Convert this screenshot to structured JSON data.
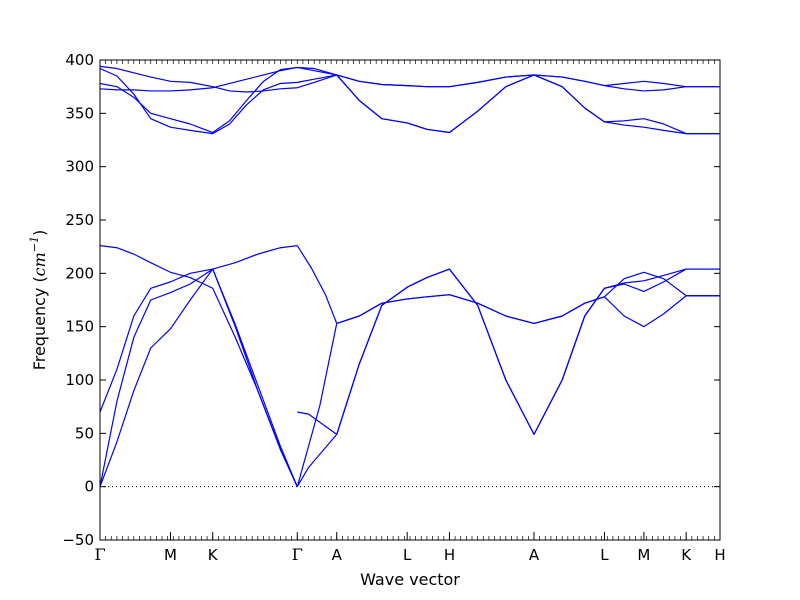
{
  "chart_data": {
    "type": "line",
    "xlabel": "Wave vector",
    "ylabel_text": "Frequency (",
    "ylabel_unit_base": "cm",
    "ylabel_unit_exp": "−1",
    "ylabel_close": ")",
    "ylim": [
      -50,
      400
    ],
    "yticks": [
      -50,
      0,
      50,
      100,
      150,
      200,
      250,
      300,
      350,
      400
    ],
    "xlim": [
      0,
      11
    ],
    "high_symmetry_points": [
      {
        "label": "Γ",
        "x": 0.0
      },
      {
        "label": "M",
        "x": 1.25
      },
      {
        "label": "K",
        "x": 2.0
      },
      {
        "label": "Γ",
        "x": 3.5
      },
      {
        "label": "A",
        "x": 4.2
      },
      {
        "label": "L",
        "x": 5.45
      },
      {
        "label": "H",
        "x": 6.2
      },
      {
        "label": "A",
        "x": 7.7
      },
      {
        "label": "L",
        "x": 8.95
      },
      {
        "label": "M",
        "x": 9.65
      },
      {
        "label": "K",
        "x": 10.4
      },
      {
        "label": "H",
        "x": 11.0
      }
    ],
    "zero_line": {
      "y": 0,
      "style": "dotted"
    },
    "line_color": "#0000ff",
    "series": [
      {
        "x": [
          0,
          0.3,
          0.6,
          0.9,
          1.25,
          1.6,
          2.0,
          2.4,
          2.8,
          3.2,
          3.5
        ],
        "y": [
          0,
          42,
          90,
          130,
          148,
          175,
          204,
          210,
          218,
          224,
          226
        ]
      },
      {
        "x": [
          0,
          0.3,
          0.6,
          0.9,
          1.25,
          1.6,
          2.0,
          2.4,
          2.8,
          3.2,
          3.5
        ],
        "y": [
          0,
          80,
          140,
          175,
          182,
          190,
          204,
          150,
          90,
          35,
          0
        ]
      },
      {
        "x": [
          0,
          0.3,
          0.6,
          0.9,
          1.25,
          1.6,
          2.0,
          2.4,
          2.8,
          3.2,
          3.5
        ],
        "y": [
          70,
          110,
          160,
          186,
          192,
          200,
          204,
          152,
          95,
          38,
          0
        ]
      },
      {
        "x": [
          0,
          0.3,
          0.6,
          0.9,
          1.25,
          1.6,
          2.0,
          2.4,
          2.8,
          3.2,
          3.5
        ],
        "y": [
          226,
          224,
          218,
          210,
          201,
          196,
          186,
          140,
          90,
          35,
          0
        ]
      },
      {
        "x": [
          3.5,
          3.7,
          4.2,
          4.6,
          5.0,
          5.45,
          5.8,
          6.2,
          6.7,
          7.2,
          7.7,
          8.2,
          8.6,
          8.95,
          9.3,
          9.65,
          10.0,
          10.4,
          11.0
        ],
        "y": [
          0,
          18,
          49,
          115,
          170,
          187,
          196,
          204,
          170,
          100,
          49,
          100,
          160,
          186,
          191,
          193,
          198,
          204,
          204
        ]
      },
      {
        "x": [
          3.5,
          3.7,
          4.2,
          4.6,
          5.0,
          5.45,
          5.8,
          6.2,
          6.7,
          7.2,
          7.7,
          8.2,
          8.6,
          8.95,
          9.3,
          9.65,
          10.0,
          10.4,
          11.0
        ],
        "y": [
          70,
          68,
          49,
          115,
          170,
          187,
          196,
          204,
          170,
          100,
          49,
          100,
          160,
          186,
          190,
          183,
          192,
          204,
          204
        ]
      },
      {
        "x": [
          3.5,
          3.75,
          4.0,
          4.2,
          4.6,
          5.0,
          5.45,
          5.8,
          6.2,
          6.7,
          7.2,
          7.7,
          8.2,
          8.6,
          8.95,
          9.3,
          9.65,
          10.0,
          10.4,
          11.0
        ],
        "y": [
          226,
          205,
          180,
          153,
          160,
          172,
          176,
          178,
          180,
          172,
          160,
          153,
          160,
          172,
          178,
          160,
          150,
          162,
          179,
          179
        ]
      },
      {
        "x": [
          3.5,
          3.9,
          4.2,
          4.6,
          5.0,
          5.45,
          5.8,
          6.2,
          6.7,
          7.2,
          7.7,
          8.2,
          8.6,
          8.95,
          9.3,
          9.65,
          10.0,
          10.4,
          11.0
        ],
        "y": [
          0,
          76,
          153,
          160,
          172,
          176,
          178,
          180,
          172,
          160,
          153,
          160,
          172,
          178,
          195,
          201,
          195,
          179,
          179
        ]
      },
      {
        "x": [
          0,
          0.3,
          0.6,
          0.9,
          1.25,
          1.6,
          2.0,
          2.3,
          2.6,
          2.9,
          3.2,
          3.5,
          3.8,
          4.2,
          4.6,
          5.0,
          5.45,
          5.8,
          6.2,
          6.7,
          7.2,
          7.7,
          8.2,
          8.6,
          8.95,
          9.3,
          9.65,
          10.0,
          10.4,
          11.0
        ],
        "y": [
          373,
          372,
          372,
          371,
          371,
          372,
          374,
          378,
          382,
          386,
          390,
          393,
          392,
          386,
          380,
          377,
          376,
          375,
          375,
          379,
          384,
          386,
          384,
          380,
          376,
          378,
          380,
          378,
          375,
          375
        ]
      },
      {
        "x": [
          0,
          0.3,
          0.6,
          0.9,
          1.25,
          1.6,
          2.0,
          2.3,
          2.6,
          2.9,
          3.2,
          3.5,
          3.8,
          4.2,
          4.6,
          5.0,
          5.45,
          5.8,
          6.2,
          6.7,
          7.2,
          7.7,
          8.2,
          8.6,
          8.95,
          9.3,
          9.65,
          10.0,
          10.4,
          11.0
        ],
        "y": [
          394,
          392,
          388,
          384,
          380,
          379,
          375,
          371,
          370,
          371,
          373,
          374,
          379,
          386,
          380,
          377,
          376,
          375,
          375,
          379,
          384,
          386,
          384,
          380,
          376,
          373,
          371,
          372,
          375,
          375
        ]
      },
      {
        "x": [
          0,
          0.3,
          0.6,
          0.9,
          1.25,
          1.6,
          2.0,
          2.3,
          2.6,
          2.9,
          3.2,
          3.5,
          3.8,
          4.2,
          4.6,
          5.0,
          5.45,
          5.8,
          6.2,
          6.7,
          7.2,
          7.7,
          8.2,
          8.6,
          8.95,
          9.3,
          9.65,
          10.0,
          10.4,
          11.0
        ],
        "y": [
          378,
          375,
          365,
          350,
          345,
          340,
          332,
          343,
          362,
          380,
          391,
          393,
          390,
          386,
          362,
          345,
          341,
          335,
          332,
          352,
          375,
          386,
          375,
          355,
          342,
          343,
          345,
          340,
          331,
          331
        ]
      },
      {
        "x": [
          0,
          0.3,
          0.6,
          0.9,
          1.25,
          1.6,
          2.0,
          2.3,
          2.6,
          2.9,
          3.2,
          3.5,
          3.8,
          4.2,
          4.6,
          5.0,
          5.45,
          5.8,
          6.2,
          6.7,
          7.2,
          7.7,
          8.2,
          8.6,
          8.95,
          9.3,
          9.65,
          10.0,
          10.4,
          11.0
        ],
        "y": [
          392,
          385,
          368,
          345,
          337,
          334,
          331,
          340,
          358,
          372,
          378,
          379,
          382,
          386,
          362,
          345,
          341,
          335,
          332,
          352,
          375,
          386,
          375,
          355,
          342,
          339,
          337,
          334,
          331,
          331
        ]
      }
    ]
  }
}
